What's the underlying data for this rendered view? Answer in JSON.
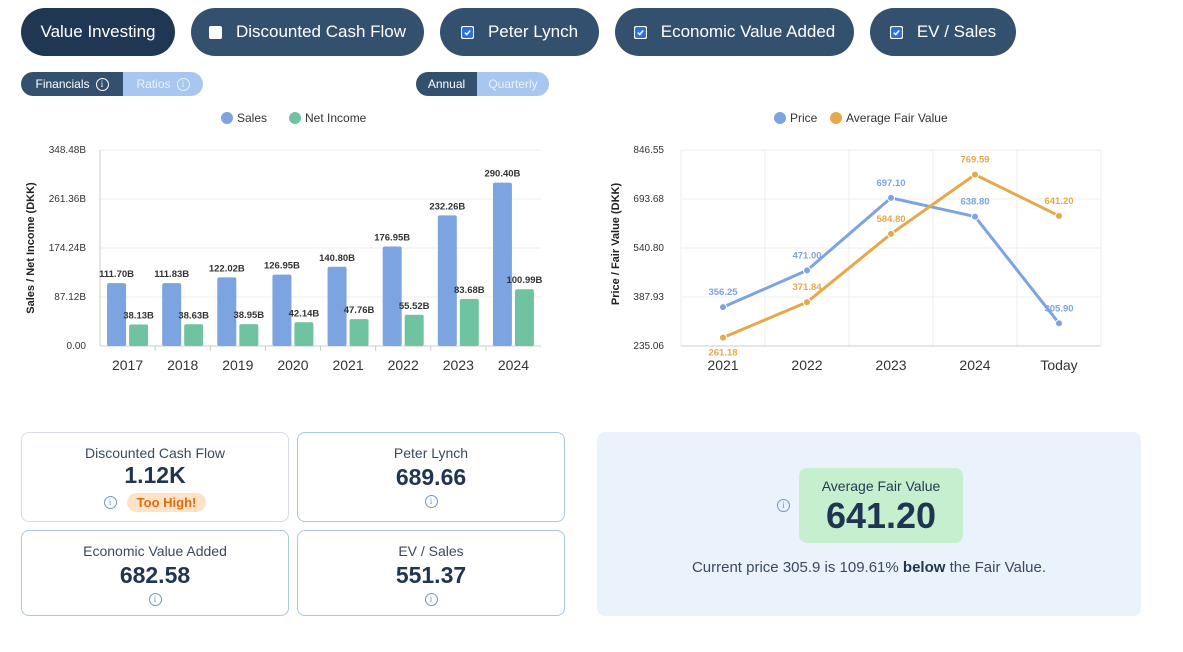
{
  "methods": [
    {
      "label": "Value Investing",
      "checkbox": false,
      "checked": false,
      "active": true
    },
    {
      "label": "Discounted Cash Flow",
      "checkbox": true,
      "checked": false,
      "active": false
    },
    {
      "label": "Peter Lynch",
      "checkbox": true,
      "checked": true,
      "active": false
    },
    {
      "label": "Economic Value Added",
      "checkbox": true,
      "checked": true,
      "active": false
    },
    {
      "label": "EV / Sales",
      "checkbox": true,
      "checked": true,
      "active": false
    }
  ],
  "view_toggle": {
    "financials": "Financials",
    "ratios": "Ratios",
    "selected": "Financials"
  },
  "period_toggle": {
    "annual": "Annual",
    "quarterly": "Quarterly",
    "selected": "Annual"
  },
  "chart_data": [
    {
      "type": "bar",
      "ylabel": "Sales / Net Income (DKK)",
      "categories": [
        "2017",
        "2018",
        "2019",
        "2020",
        "2021",
        "2022",
        "2023",
        "2024"
      ],
      "yticks": [
        "348.48B",
        "261.36B",
        "174.24B",
        "87.12B",
        "0.00"
      ],
      "ylim": [
        0,
        348.48
      ],
      "legend_position": "top-center",
      "series": [
        {
          "name": "Sales",
          "color": "#7ba4e0",
          "values": [
            111.7,
            111.83,
            122.02,
            126.95,
            140.8,
            176.95,
            232.26,
            290.4
          ],
          "labels": [
            "111.70B",
            "111.83B",
            "122.02B",
            "126.95B",
            "140.80B",
            "176.95B",
            "232.26B",
            "290.40B"
          ]
        },
        {
          "name": "Net Income",
          "color": "#6fc3a0",
          "values": [
            38.13,
            38.63,
            38.95,
            42.14,
            47.76,
            55.52,
            83.68,
            100.99
          ],
          "labels": [
            "38.13B",
            "38.63B",
            "38.95B",
            "42.14B",
            "47.76B",
            "55.52B",
            "83.68B",
            "100.99B"
          ]
        }
      ]
    },
    {
      "type": "line",
      "ylabel": "Price / Fair Value (DKK)",
      "categories": [
        "2021",
        "2022",
        "2023",
        "2024",
        "Today"
      ],
      "yticks": [
        "846.55",
        "693.68",
        "540.80",
        "387.93",
        "235.06"
      ],
      "ylim": [
        235.06,
        846.55
      ],
      "legend_position": "top-center",
      "series": [
        {
          "name": "Price",
          "color": "#7ba4e0",
          "values": [
            356.25,
            471.0,
            697.1,
            638.8,
            305.9
          ],
          "labels": [
            "356.25",
            "471.00",
            "697.10",
            "638.80",
            "305.90"
          ]
        },
        {
          "name": "Average Fair Value",
          "color": "#e6a84b",
          "values": [
            261.18,
            371.84,
            584.8,
            769.59,
            641.2
          ],
          "labels": [
            "261.18",
            "371.84",
            "584.80",
            "769.59",
            "641.20"
          ]
        }
      ]
    }
  ],
  "cards": {
    "dcf": {
      "title": "Discounted Cash Flow",
      "value": "1.12K",
      "badge": "Too High!"
    },
    "lynch": {
      "title": "Peter Lynch",
      "value": "689.66"
    },
    "eva": {
      "title": "Economic Value Added",
      "value": "682.58"
    },
    "evs": {
      "title": "EV / Sales",
      "value": "551.37"
    }
  },
  "summary": {
    "label": "Average Fair Value",
    "value": "641.20",
    "text_before": "Current price 305.9 is 109.61% ",
    "text_bold": "below",
    "text_after": " the Fair Value."
  },
  "colors": {
    "accent_dark": "#203754",
    "pill": "#34506f",
    "sales": "#7ba4e0",
    "net_income": "#6fc3a0",
    "fair_value": "#e6a84b",
    "badge_text": "#e26b10",
    "fv_box": "#c6efcf"
  }
}
